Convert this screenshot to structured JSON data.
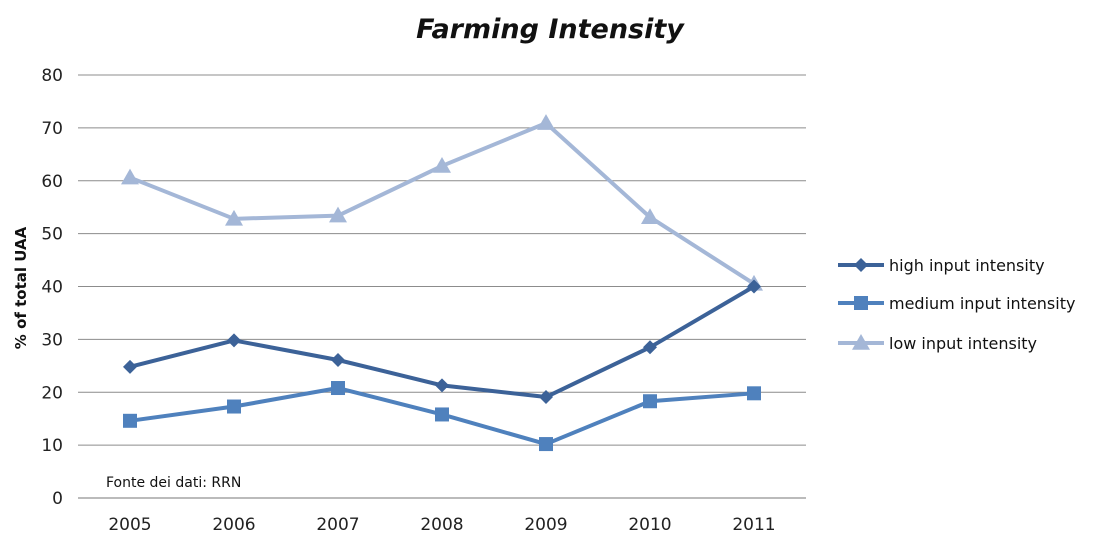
{
  "chart_data": {
    "type": "line",
    "title": "Farming Intensity",
    "ylabel": "% of total UAA",
    "xlabel": "",
    "categories": [
      "2005",
      "2006",
      "2007",
      "2008",
      "2009",
      "2010",
      "2011"
    ],
    "ylim": [
      0,
      80
    ],
    "yticks": [
      0,
      10,
      20,
      30,
      40,
      50,
      60,
      70,
      80
    ],
    "grid": true,
    "legend_position": "right",
    "annotation": "Fonte dei dati: RRN",
    "series": [
      {
        "name": "high input intensity",
        "marker": "diamond",
        "color": "#3C6298",
        "values": [
          24.8,
          29.8,
          26.1,
          21.3,
          19.1,
          28.5,
          40.0
        ]
      },
      {
        "name": "medium input intensity",
        "marker": "square",
        "color": "#4F81BD",
        "values": [
          14.6,
          17.3,
          20.8,
          15.8,
          10.2,
          18.3,
          19.8
        ]
      },
      {
        "name": "low input intensity",
        "marker": "triangle",
        "color": "#A4B7D7",
        "values": [
          60.6,
          52.8,
          53.4,
          62.8,
          70.9,
          53.1,
          40.5
        ]
      }
    ]
  }
}
